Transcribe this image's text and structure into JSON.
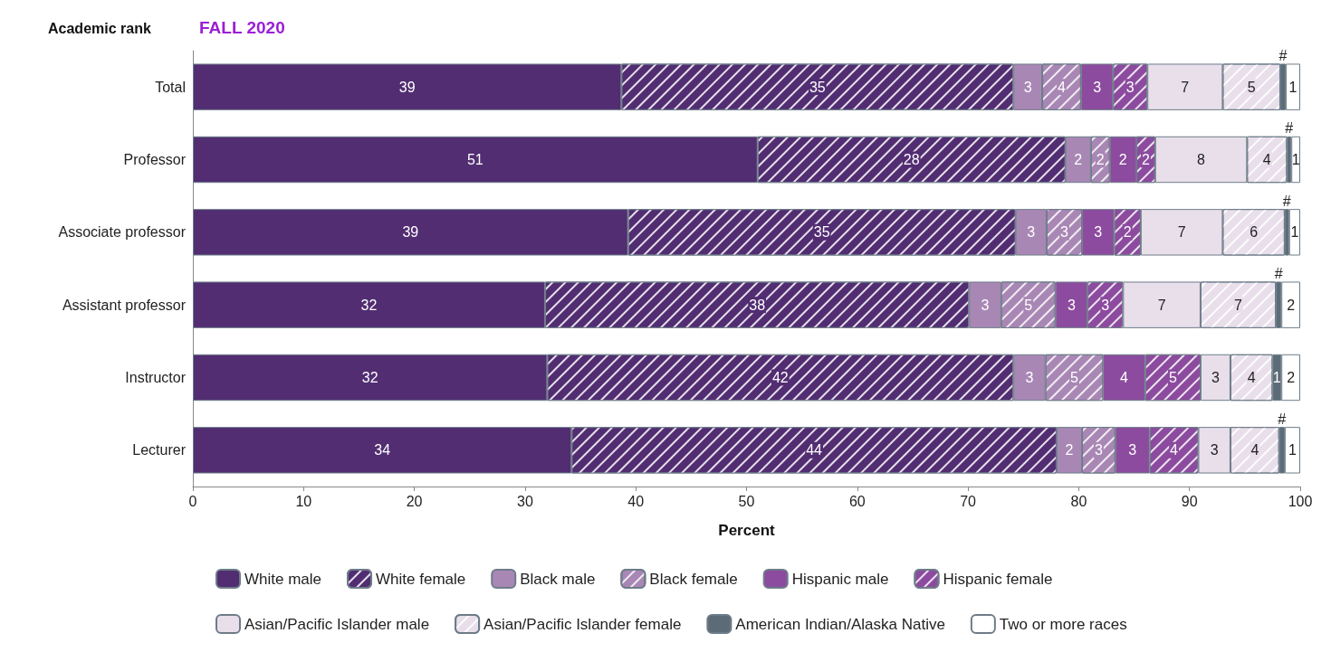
{
  "chart_data": {
    "type": "bar",
    "orientation": "horizontal",
    "stacked": true,
    "title": "FALL 2020",
    "ylabel": "Academic rank",
    "xlabel": "Percent",
    "categories": [
      "Total",
      "Professor",
      "Associate professor",
      "Assistant professor",
      "Instructor",
      "Lecturer"
    ],
    "xlim": [
      0,
      100
    ],
    "xticks": [
      0,
      10,
      20,
      30,
      40,
      50,
      60,
      70,
      80,
      90,
      100
    ],
    "grid": false,
    "legend": "bottom",
    "series": [
      {
        "name": "White male",
        "color": "#522d72",
        "values": [
          38.7,
          51.0,
          39.3,
          31.8,
          32.0,
          34.2
        ],
        "value_labels": [
          "39",
          "51",
          "39",
          "32",
          "32",
          "34"
        ]
      },
      {
        "name": "White female",
        "color": "#522d72",
        "values": [
          35.4,
          27.8,
          35.0,
          38.3,
          42.1,
          43.8
        ],
        "value_labels": [
          "35",
          "28",
          "35",
          "38",
          "42",
          "44"
        ]
      },
      {
        "name": "Black male",
        "color": "#a987b5",
        "values": [
          2.6,
          2.3,
          2.8,
          2.9,
          2.9,
          2.3
        ],
        "value_labels": [
          "3",
          "2",
          "3",
          "3",
          "3",
          "2"
        ]
      },
      {
        "name": "Black female",
        "color": "#a987b5",
        "values": [
          3.5,
          1.7,
          3.2,
          4.9,
          5.2,
          3.0
        ],
        "value_labels": [
          "4",
          "2",
          "3",
          "5",
          "5",
          "3"
        ]
      },
      {
        "name": "Hispanic male",
        "color": "#8c4b9f",
        "values": [
          2.9,
          2.4,
          2.9,
          2.9,
          3.8,
          3.1
        ],
        "value_labels": [
          "3",
          "2",
          "3",
          "3",
          "4",
          "3"
        ]
      },
      {
        "name": "Hispanic female",
        "color": "#8c4b9f",
        "values": [
          3.1,
          1.7,
          2.4,
          3.2,
          5.0,
          4.4
        ],
        "value_labels": [
          "3",
          "2",
          "2",
          "3",
          "5",
          "4"
        ]
      },
      {
        "name": "Asian/Pacific Islander male",
        "color": "#e8dfeb",
        "values": [
          6.8,
          8.3,
          7.4,
          7.0,
          2.7,
          2.9
        ],
        "value_labels": [
          "7",
          "8",
          "7",
          "7",
          "3",
          "3"
        ]
      },
      {
        "name": "Asian/Pacific Islander female",
        "color": "#e8dfeb",
        "values": [
          5.2,
          3.6,
          5.6,
          6.8,
          3.8,
          4.4
        ],
        "value_labels": [
          "5",
          "4",
          "6",
          "7",
          "4",
          "4"
        ]
      },
      {
        "name": "American Indian/Alaska Native",
        "color": "#5c6b78",
        "values": [
          0.5,
          0.4,
          0.4,
          0.5,
          0.8,
          0.5
        ],
        "value_labels": [
          "#",
          "#",
          "#",
          "#",
          "1",
          "#"
        ]
      },
      {
        "name": "Two or more races",
        "color": "#ffffff",
        "values": [
          1.3,
          0.8,
          1.0,
          1.7,
          1.7,
          1.4
        ],
        "value_labels": [
          "1",
          "1",
          "1",
          "2",
          "2",
          "1"
        ]
      }
    ]
  }
}
